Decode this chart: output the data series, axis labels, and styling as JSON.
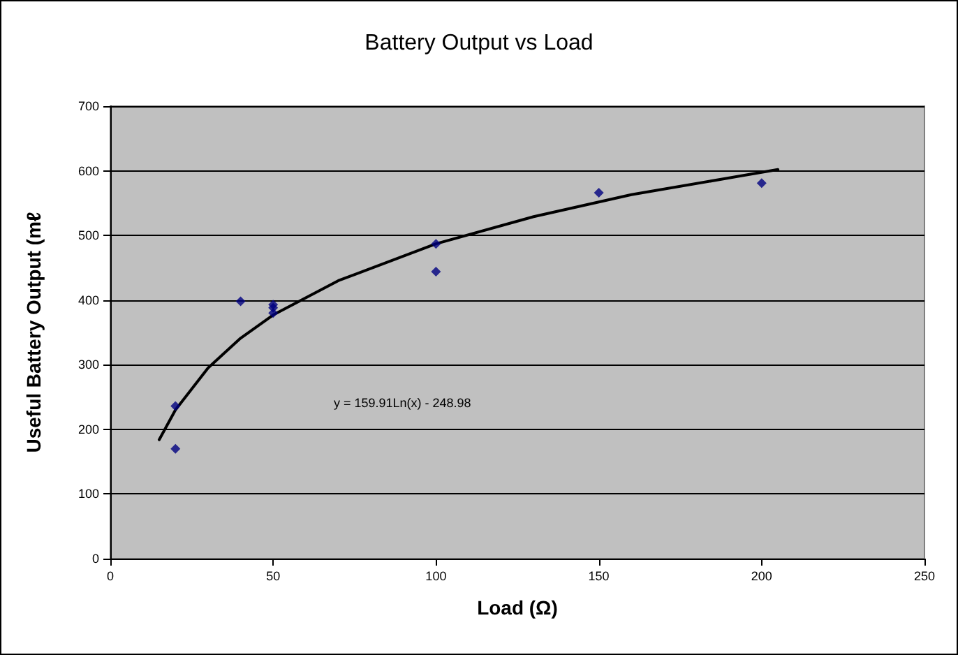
{
  "chart_data": {
    "type": "scatter",
    "title": "Battery Output vs Load",
    "xlabel": "Load (Ω)",
    "ylabel": "Useful Battery Output (mℓ",
    "xlim": [
      0,
      250
    ],
    "xticks": [
      0,
      50,
      100,
      150,
      200,
      250
    ],
    "ylim": [
      0,
      700
    ],
    "yticks": [
      0,
      100,
      200,
      300,
      400,
      500,
      600,
      700
    ],
    "grid": "y",
    "marker": "diamond",
    "annotations": [
      "y = 159.91Ln(x) - 248.98"
    ],
    "series": [
      {
        "type": "scatter",
        "color": "#000080",
        "x": [
          20,
          20,
          40,
          50,
          50,
          50,
          100,
          100,
          150,
          200
        ],
        "values": [
          236,
          170,
          398,
          393,
          388,
          380,
          444,
          487,
          566,
          581
        ]
      },
      {
        "type": "line",
        "color": "#000000",
        "marker": "none",
        "line_style": "solid",
        "x": [
          15,
          20,
          30,
          40,
          50,
          70,
          100,
          130,
          160,
          205
        ],
        "values": [
          184,
          230,
          295,
          341,
          377,
          430,
          487,
          529,
          563,
          602
        ]
      }
    ]
  }
}
